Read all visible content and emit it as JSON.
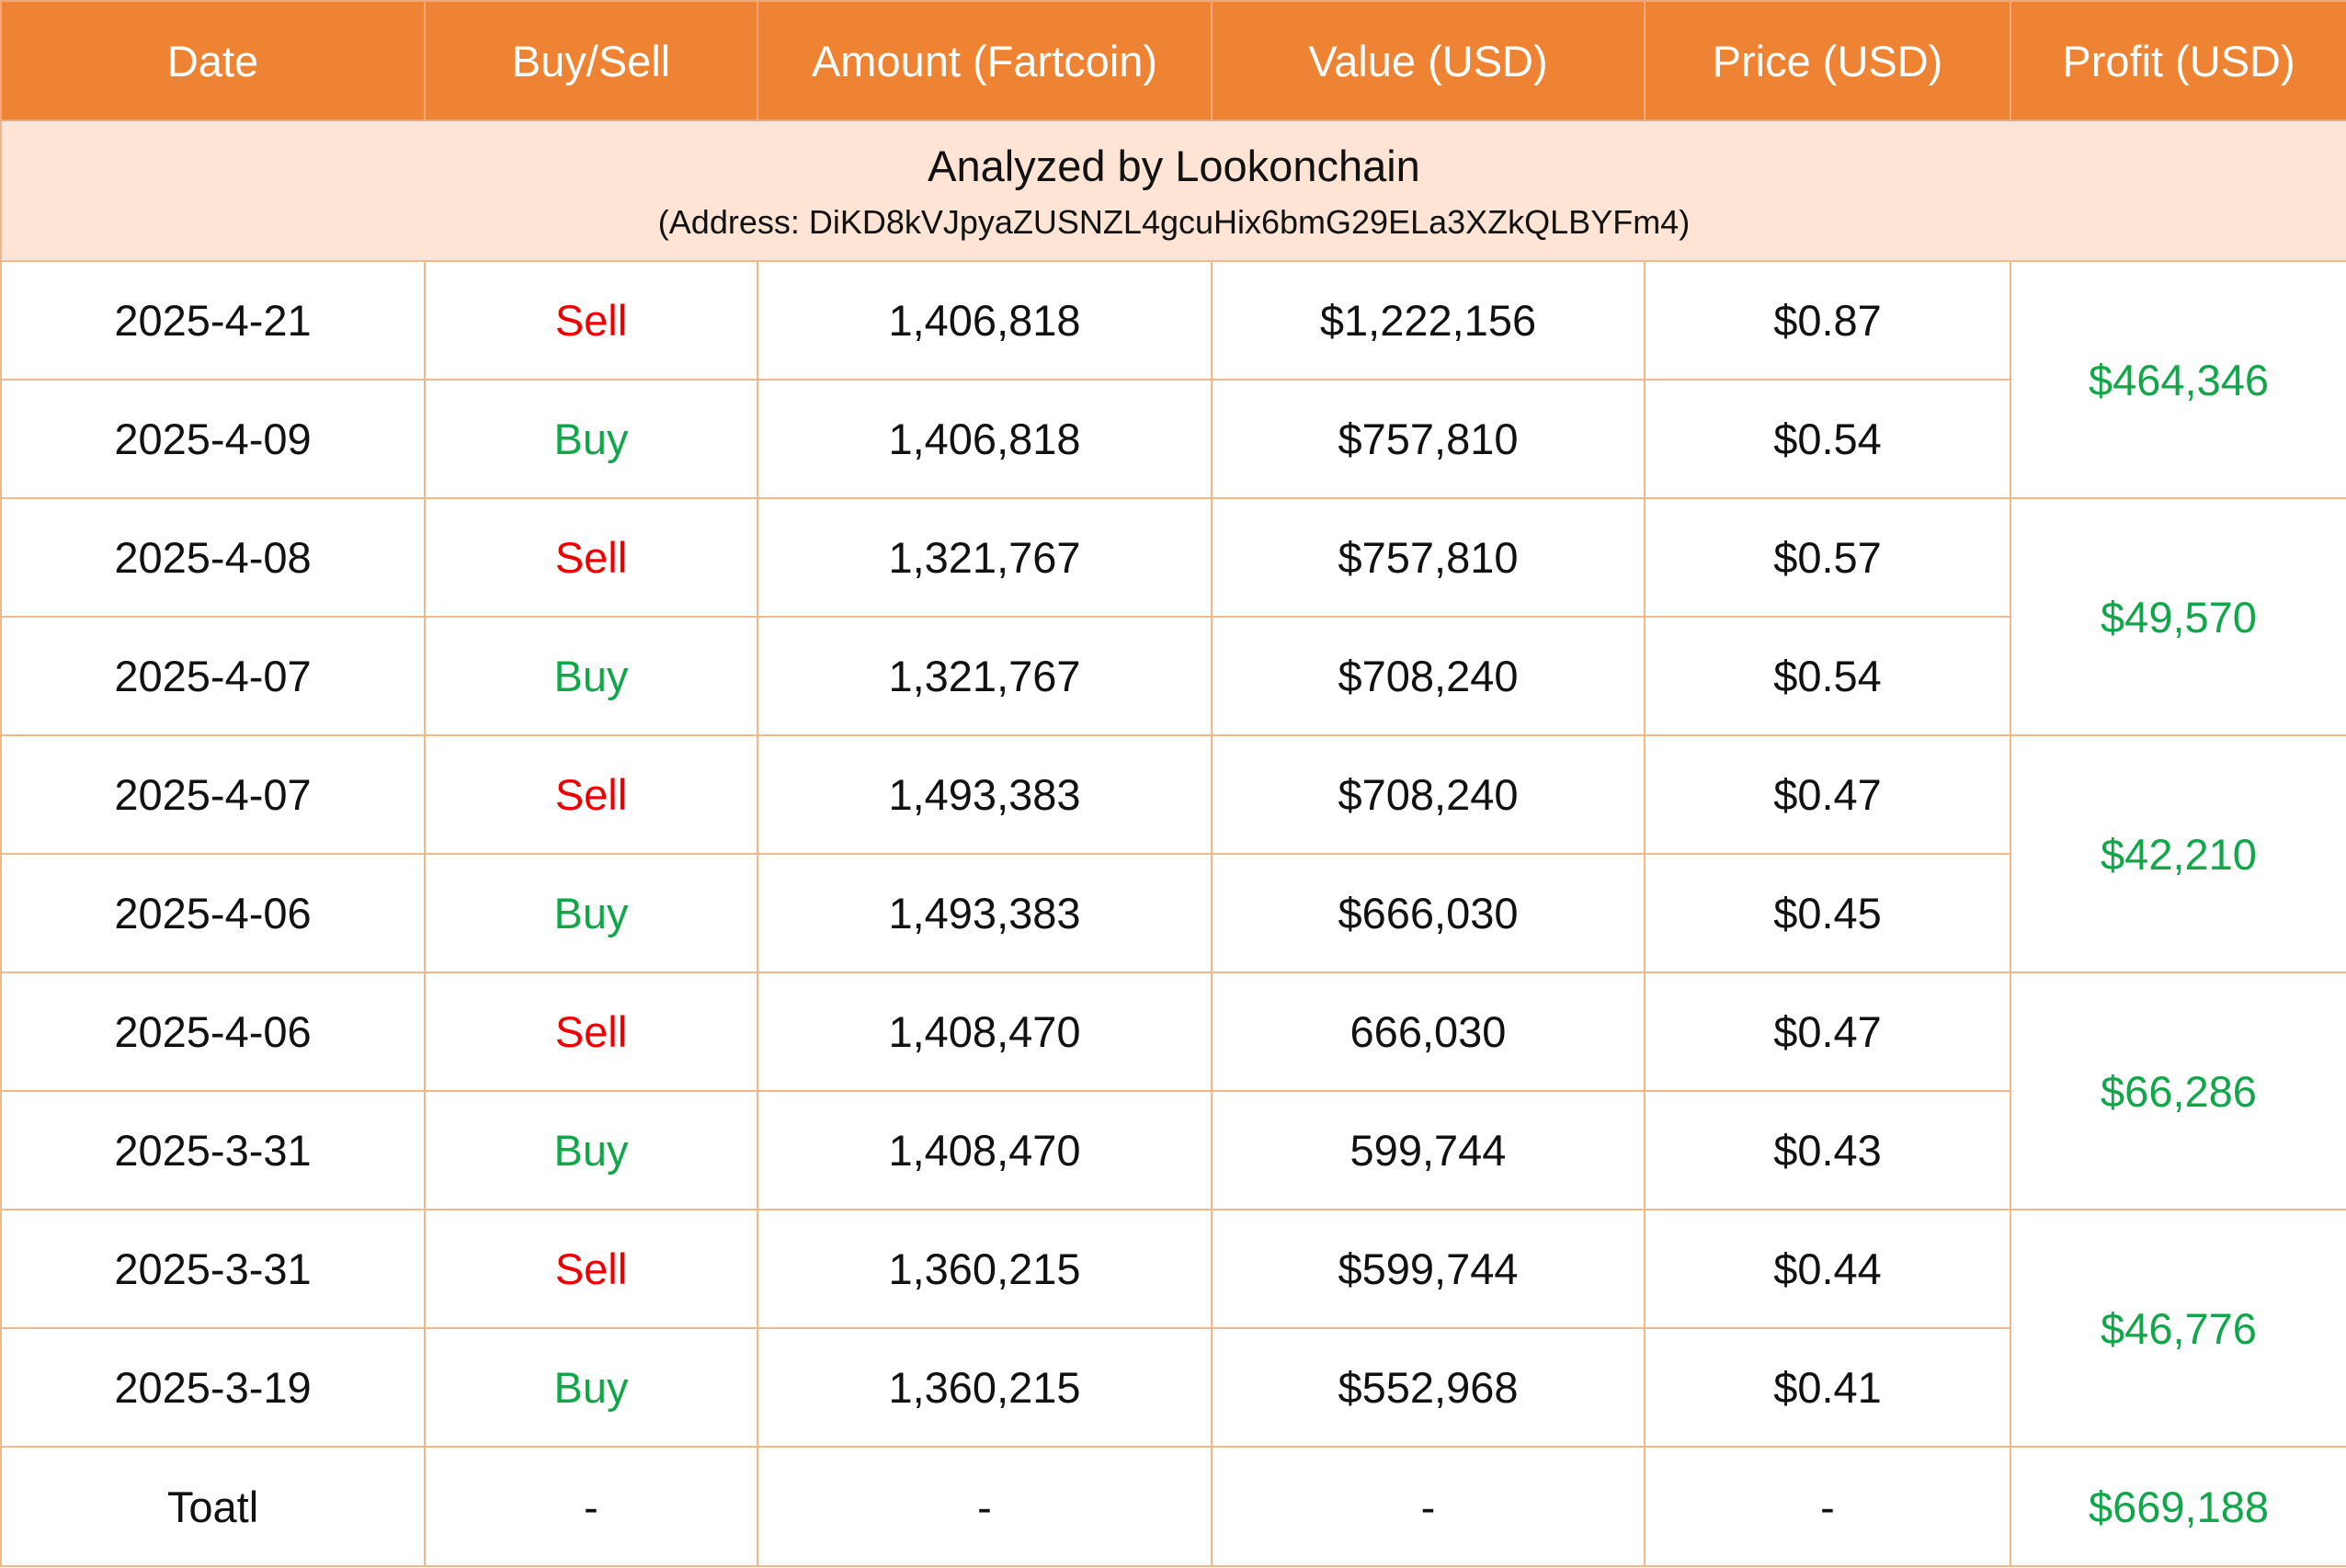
{
  "colors": {
    "header_bg": "#ee8433",
    "banner_bg": "#fde4d5",
    "border": "#f3b78c",
    "sell": "#ee0000",
    "buy": "#11a64a",
    "profit": "#11a64a"
  },
  "headers": {
    "date": "Date",
    "side": "Buy/Sell",
    "amount": "Amount (Fartcoin)",
    "value": "Value (USD)",
    "price": "Price (USD)",
    "profit": "Profit (USD)"
  },
  "banner": {
    "title": "Analyzed by Lookonchain",
    "address": "(Address: DiKD8kVJpyaZUSNZL4gcuHix6bmG29ELa3XZkQLBYFm4)"
  },
  "rows": [
    {
      "date": "2025-4-21",
      "side": "Sell",
      "amount": "1,406,818",
      "value": "$1,222,156",
      "price": "$0.87"
    },
    {
      "date": "2025-4-09",
      "side": "Buy",
      "amount": "1,406,818",
      "value": "$757,810",
      "price": "$0.54"
    },
    {
      "date": "2025-4-08",
      "side": "Sell",
      "amount": "1,321,767",
      "value": "$757,810",
      "price": "$0.57"
    },
    {
      "date": "2025-4-07",
      "side": "Buy",
      "amount": "1,321,767",
      "value": "$708,240",
      "price": "$0.54"
    },
    {
      "date": "2025-4-07",
      "side": "Sell",
      "amount": "1,493,383",
      "value": "$708,240",
      "price": "$0.47"
    },
    {
      "date": "2025-4-06",
      "side": "Buy",
      "amount": "1,493,383",
      "value": "$666,030",
      "price": "$0.45"
    },
    {
      "date": "2025-4-06",
      "side": "Sell",
      "amount": "1,408,470",
      "value": "666,030",
      "price": "$0.47"
    },
    {
      "date": "2025-3-31",
      "side": "Buy",
      "amount": "1,408,470",
      "value": "599,744",
      "price": "$0.43"
    },
    {
      "date": "2025-3-31",
      "side": "Sell",
      "amount": "1,360,215",
      "value": "$599,744",
      "price": "$0.44"
    },
    {
      "date": "2025-3-19",
      "side": "Buy",
      "amount": "1,360,215",
      "value": "$552,968",
      "price": "$0.41"
    }
  ],
  "profits": [
    "$464,346",
    "$49,570",
    "$42,210",
    "$66,286",
    "$46,776"
  ],
  "total": {
    "label": "Toatl",
    "side": "-",
    "amount": "-",
    "value": "-",
    "price": "-",
    "profit": "$669,188"
  }
}
